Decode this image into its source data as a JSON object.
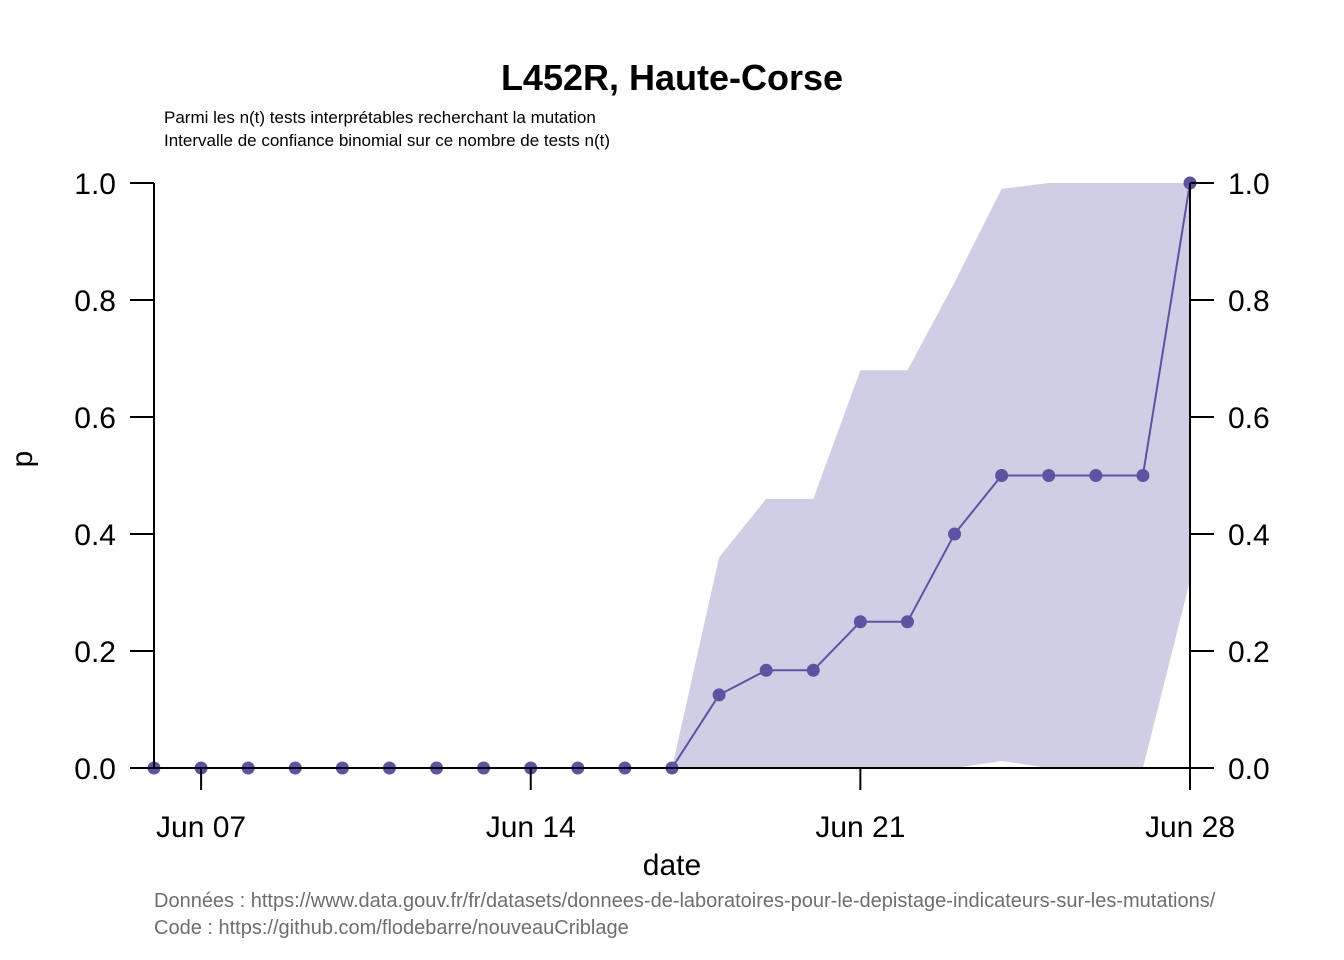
{
  "colors": {
    "line": "#5e53a2",
    "band": "#d0cee4",
    "axis": "#000000",
    "caption": "#6e6e6e"
  },
  "chart_data": {
    "type": "line",
    "title": "L452R, Haute-Corse",
    "subtitle_lines": [
      "Parmi les n(t) tests interprétables recherchant la mutation",
      "Intervalle de confiance binomial sur ce nombre de tests n(t)"
    ],
    "xlabel": "date",
    "ylabel": "p",
    "ylim": [
      0,
      1
    ],
    "y_ticks": [
      "0.0",
      "0.2",
      "0.4",
      "0.6",
      "0.8",
      "1.0"
    ],
    "x_ticks": [
      {
        "date": "2021-06-07",
        "label": "Jun 07"
      },
      {
        "date": "2021-06-14",
        "label": "Jun 14"
      },
      {
        "date": "2021-06-21",
        "label": "Jun 21"
      },
      {
        "date": "2021-06-28",
        "label": "Jun 28"
      }
    ],
    "x_range": [
      "2021-06-06",
      "2021-06-28"
    ],
    "series": [
      {
        "x": [
          "2021-06-06",
          "2021-06-07",
          "2021-06-08",
          "2021-06-09",
          "2021-06-10",
          "2021-06-11",
          "2021-06-12",
          "2021-06-13",
          "2021-06-14",
          "2021-06-15",
          "2021-06-16",
          "2021-06-17",
          "2021-06-18",
          "2021-06-19",
          "2021-06-20",
          "2021-06-21",
          "2021-06-22",
          "2021-06-23",
          "2021-06-24",
          "2021-06-25",
          "2021-06-26",
          "2021-06-27",
          "2021-06-28"
        ],
        "p": [
          0,
          0,
          0,
          0,
          0,
          0,
          0,
          0,
          0,
          0,
          0,
          0,
          0.125,
          0.167,
          0.167,
          0.25,
          0.25,
          0.4,
          0.5,
          0.5,
          0.5,
          0.5,
          1.0
        ],
        "ci_lower": [
          0,
          0,
          0,
          0,
          0,
          0,
          0,
          0,
          0,
          0,
          0,
          0,
          0,
          0,
          0,
          0,
          0,
          0,
          0.012,
          0.0,
          0.0,
          0.0,
          0.32
        ],
        "ci_upper": [
          0,
          0,
          0,
          0,
          0,
          0,
          0,
          0,
          0,
          0,
          0,
          0,
          0.36,
          0.46,
          0.46,
          0.68,
          0.68,
          0.83,
          0.99,
          1.0,
          1.0,
          1.0,
          1.0
        ]
      }
    ],
    "caption_lines": [
      "Données : https://www.data.gouv.fr/fr/datasets/donnees-de-laboratoires-pour-le-depistage-indicateurs-sur-les-mutations/",
      "Code : https://github.com/flodebarre/nouveauCriblage"
    ]
  }
}
